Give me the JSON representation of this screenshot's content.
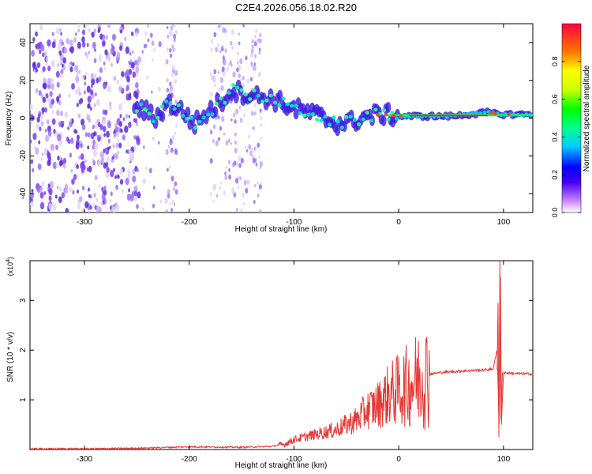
{
  "title": "C2E4.2026.056.18.02.R20",
  "chart_data": [
    {
      "type": "heatmap",
      "name": "spectrogram",
      "xlabel": "Height of straight line (km)",
      "ylabel": "Frequency (Hz)",
      "xlim": [
        -352,
        128
      ],
      "ylim": [
        -50,
        50
      ],
      "xticks": [
        -300,
        -200,
        -100,
        0,
        100
      ],
      "yticks": [
        -40,
        -20,
        0,
        20,
        40
      ],
      "colorbar": {
        "label": "Normalized spectral amplitude",
        "range": [
          0,
          1
        ],
        "ticks": [
          0.0,
          0.2,
          0.4,
          0.6,
          0.8
        ]
      },
      "ridge": [
        {
          "x": -250,
          "y": 6
        },
        {
          "x": -240,
          "y": 3
        },
        {
          "x": -232,
          "y": 0
        },
        {
          "x": -220,
          "y": 8
        },
        {
          "x": -205,
          "y": 3
        },
        {
          "x": -195,
          "y": -3
        },
        {
          "x": -180,
          "y": 4
        },
        {
          "x": -170,
          "y": 8
        },
        {
          "x": -160,
          "y": 15
        },
        {
          "x": -140,
          "y": 12
        },
        {
          "x": -120,
          "y": 10
        },
        {
          "x": -100,
          "y": 5
        },
        {
          "x": -80,
          "y": 2
        },
        {
          "x": -60,
          "y": -3
        },
        {
          "x": -45,
          "y": -2
        },
        {
          "x": -30,
          "y": 1
        },
        {
          "x": -15,
          "y": 2
        },
        {
          "x": 0,
          "y": 1
        },
        {
          "x": 50,
          "y": 1
        },
        {
          "x": 85,
          "y": 3
        },
        {
          "x": 95,
          "y": 2
        },
        {
          "x": 128,
          "y": 2
        }
      ]
    },
    {
      "type": "line",
      "name": "snr",
      "xlabel": "Height of straight line (km)",
      "ylabel": "SNR (10 * v/v)",
      "yscale_label": "(x10",
      "yscale_exp": "4",
      "yscale_close": ")",
      "xlim": [
        -352,
        128
      ],
      "ylim": [
        0,
        3.8
      ],
      "xticks": [
        -300,
        -200,
        -100,
        0,
        100
      ],
      "yticks": [
        1,
        2,
        3
      ],
      "color": "#e53935",
      "series": [
        {
          "name": "SNR",
          "points": [
            {
              "x": -352,
              "y": 0.0
            },
            {
              "x": -300,
              "y": 0.0
            },
            {
              "x": -250,
              "y": 0.01
            },
            {
              "x": -200,
              "y": 0.04
            },
            {
              "x": -150,
              "y": 0.03
            },
            {
              "x": -120,
              "y": 0.05
            },
            {
              "x": -110,
              "y": 0.1
            },
            {
              "x": -100,
              "y": 0.2
            },
            {
              "x": -90,
              "y": 0.25
            },
            {
              "x": -80,
              "y": 0.3
            },
            {
              "x": -70,
              "y": 0.35
            },
            {
              "x": -60,
              "y": 0.4
            },
            {
              "x": -50,
              "y": 0.5
            },
            {
              "x": -40,
              "y": 0.6
            },
            {
              "x": -30,
              "y": 0.8
            },
            {
              "x": -20,
              "y": 0.9
            },
            {
              "x": -10,
              "y": 1.1
            },
            {
              "x": 0,
              "y": 1.2
            },
            {
              "x": 10,
              "y": 1.3
            },
            {
              "x": 20,
              "y": 1.45
            },
            {
              "x": 30,
              "y": 1.52
            },
            {
              "x": 40,
              "y": 1.55
            },
            {
              "x": 60,
              "y": 1.58
            },
            {
              "x": 80,
              "y": 1.6
            },
            {
              "x": 90,
              "y": 1.62
            },
            {
              "x": 94,
              "y": 2.0
            },
            {
              "x": 96,
              "y": 0.3
            },
            {
              "x": 97,
              "y": 3.8
            },
            {
              "x": 98,
              "y": 0.5
            },
            {
              "x": 100,
              "y": 1.55
            },
            {
              "x": 110,
              "y": 1.53
            },
            {
              "x": 128,
              "y": 1.52
            }
          ]
        }
      ]
    }
  ]
}
